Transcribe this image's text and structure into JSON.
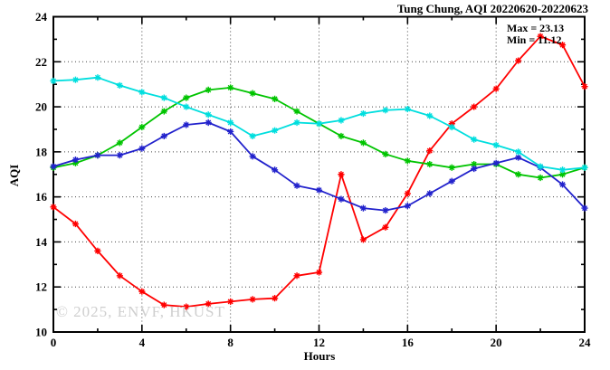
{
  "header": {
    "title": "Tung Chung, AQI 20220620-20220623"
  },
  "annotations": {
    "max_label": "Max = 23.13",
    "min_label": "Min = 11.12"
  },
  "watermark": "© 2025, ENVF, HKUST",
  "axes": {
    "y_title": "AQI",
    "x_title": "Hours"
  },
  "chart_data": {
    "type": "line",
    "title": "Tung Chung, AQI 20220620-20220623",
    "xlabel": "Hours",
    "ylabel": "AQI",
    "xlim": [
      0,
      24
    ],
    "ylim": [
      10,
      24
    ],
    "x_major_ticks": [
      0,
      4,
      8,
      12,
      16,
      20,
      24
    ],
    "x_minor_step": 2,
    "y_major_ticks": [
      10,
      12,
      14,
      16,
      18,
      20,
      22,
      24
    ],
    "y_minor_step": 1,
    "grid": true,
    "legend": "none",
    "marker_style": "asterisk",
    "annotated_max": 23.13,
    "annotated_min": 11.12,
    "x": [
      0,
      1,
      2,
      3,
      4,
      5,
      6,
      7,
      8,
      9,
      10,
      11,
      12,
      13,
      14,
      15,
      16,
      17,
      18,
      19,
      20,
      21,
      22,
      23,
      24
    ],
    "series": [
      {
        "name": "red",
        "color": "#ff0000",
        "values": [
          15.55,
          14.8,
          13.6,
          12.5,
          11.8,
          11.2,
          11.12,
          11.25,
          11.35,
          11.45,
          11.5,
          12.5,
          12.65,
          17.0,
          14.1,
          14.65,
          16.15,
          18.05,
          19.25,
          20.0,
          20.8,
          22.05,
          23.13,
          22.75,
          20.9
        ]
      },
      {
        "name": "green",
        "color": "#00c400",
        "values": [
          17.3,
          17.5,
          17.85,
          18.4,
          19.1,
          19.8,
          20.4,
          20.75,
          20.85,
          20.6,
          20.35,
          19.8,
          19.25,
          18.7,
          18.4,
          17.9,
          17.6,
          17.45,
          17.3,
          17.45,
          17.45,
          17.0,
          16.85,
          17.0,
          17.3
        ]
      },
      {
        "name": "blue",
        "color": "#2222cc",
        "values": [
          17.35,
          17.65,
          17.85,
          17.85,
          18.15,
          18.7,
          19.2,
          19.3,
          18.9,
          17.8,
          17.2,
          16.5,
          16.3,
          15.9,
          15.5,
          15.4,
          15.6,
          16.15,
          16.7,
          17.25,
          17.5,
          17.75,
          17.3,
          16.55,
          15.5
        ]
      },
      {
        "name": "cyan",
        "color": "#00dede",
        "values": [
          21.15,
          21.2,
          21.3,
          20.95,
          20.65,
          20.4,
          20.0,
          19.65,
          19.3,
          18.7,
          18.95,
          19.3,
          19.25,
          19.4,
          19.7,
          19.85,
          19.9,
          19.6,
          19.1,
          18.55,
          18.3,
          18.0,
          17.35,
          17.2,
          17.3
        ]
      }
    ]
  }
}
